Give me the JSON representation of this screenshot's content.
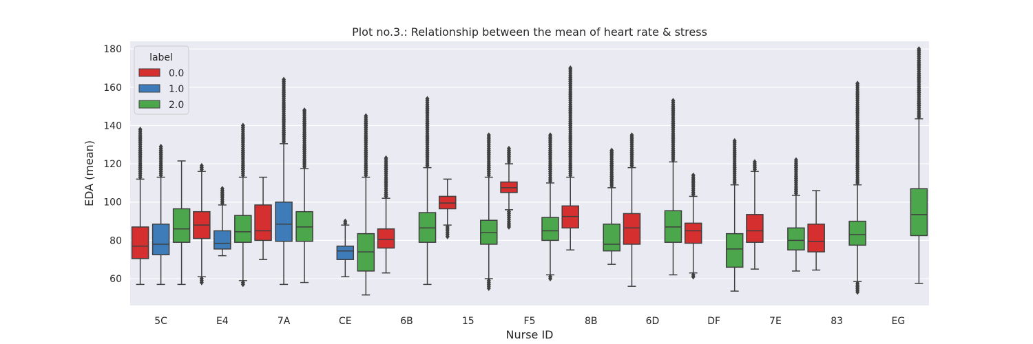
{
  "chart_data": {
    "type": "box",
    "title": "Plot no.3.: Relationship between the mean of heart rate & stress",
    "xlabel": "Nurse ID",
    "ylabel": "EDA (mean)",
    "ylim": [
      46,
      184
    ],
    "yticks": [
      60,
      80,
      100,
      120,
      140,
      160,
      180
    ],
    "grid": true,
    "legend": {
      "title": "label",
      "placement": "top-left"
    },
    "categories": [
      "5C",
      "E4",
      "7A",
      "CE",
      "6B",
      "15",
      "F5",
      "8B",
      "6D",
      "DF",
      "7E",
      "83",
      "EG"
    ],
    "series": [
      {
        "name": "0.0",
        "color": "#d62f2f",
        "boxes": [
          {
            "category": "5C",
            "min": 57,
            "q1": 70.5,
            "median": 77,
            "q3": 87,
            "max": 112,
            "outliers_to": 138
          },
          {
            "category": "E4",
            "min": 61,
            "q1": 81,
            "median": 88,
            "q3": 95,
            "max": 116,
            "outliers_low_to": 58,
            "outliers_to": 119
          },
          {
            "category": "7A",
            "min": 70,
            "q1": 80,
            "median": 85,
            "q3": 98.5,
            "max": 113
          },
          null,
          {
            "category": "6B",
            "min": 63,
            "q1": 76,
            "median": 80.5,
            "q3": 86,
            "max": 102,
            "outliers_to": 123
          },
          {
            "category": "15",
            "min": 88,
            "q1": 96.5,
            "median": 99.5,
            "q3": 103,
            "max": 112,
            "outliers_low_to": 82
          },
          {
            "category": "F5",
            "min": 96,
            "q1": 105,
            "median": 107.5,
            "q3": 110.5,
            "max": 120,
            "outliers_low_to": 87,
            "outliers_to": 128
          },
          {
            "category": "8B",
            "min": 75,
            "q1": 86.5,
            "median": 92.5,
            "q3": 98,
            "max": 113,
            "outliers_to": 170
          },
          {
            "category": "6D",
            "min": 56,
            "q1": 78,
            "median": 86.5,
            "q3": 94,
            "max": 118,
            "outliers_to": 135
          },
          {
            "category": "DF",
            "min": 63,
            "q1": 78.5,
            "median": 85,
            "q3": 89,
            "max": 103,
            "outliers_low_to": 61,
            "outliers_to": 114
          },
          {
            "category": "7E",
            "min": 65,
            "q1": 79,
            "median": 85,
            "q3": 93.5,
            "max": 116,
            "outliers_to": 121
          },
          {
            "category": "83",
            "min": 64.5,
            "q1": 74,
            "median": 79.5,
            "q3": 88.5,
            "max": 106
          },
          null
        ]
      },
      {
        "name": "1.0",
        "color": "#3d7cb8",
        "boxes": [
          {
            "category": "5C",
            "min": 57,
            "q1": 72.5,
            "median": 78,
            "q3": 88.5,
            "max": 113,
            "outliers_to": 129
          },
          {
            "category": "E4",
            "min": 72,
            "q1": 75.5,
            "median": 78.5,
            "q3": 85,
            "max": 98.5,
            "outliers_to": 107
          },
          {
            "category": "7A",
            "min": 57,
            "q1": 79.5,
            "median": 88.5,
            "q3": 100,
            "max": 130.5,
            "outliers_to": 164
          },
          {
            "category": "CE",
            "min": 61,
            "q1": 70,
            "median": 74.5,
            "q3": 77,
            "max": 88,
            "outliers_to": 90
          },
          null,
          null,
          null,
          null,
          null,
          null,
          null,
          null,
          null
        ]
      },
      {
        "name": "2.0",
        "color": "#4ca64c",
        "boxes": [
          {
            "category": "5C",
            "min": 57,
            "q1": 79,
            "median": 86,
            "q3": 96.5,
            "max": 121.5
          },
          {
            "category": "E4",
            "min": 59,
            "q1": 79,
            "median": 84.5,
            "q3": 93,
            "max": 113,
            "outliers_low_to": 57,
            "outliers_to": 140
          },
          {
            "category": "7A",
            "min": 58,
            "q1": 79.5,
            "median": 87,
            "q3": 95,
            "max": 117.5,
            "outliers_to": 148
          },
          {
            "category": "CE",
            "min": 51.5,
            "q1": 64,
            "median": 74,
            "q3": 83.5,
            "max": 113,
            "outliers_to": 145
          },
          {
            "category": "6B",
            "min": 57,
            "q1": 79,
            "median": 86.5,
            "q3": 94.5,
            "max": 118,
            "outliers_to": 154
          },
          {
            "category": "15",
            "min": 60,
            "q1": 78,
            "median": 84,
            "q3": 90.5,
            "max": 113,
            "outliers_low_to": 55,
            "outliers_to": 135
          },
          {
            "category": "F5",
            "min": 62,
            "q1": 80,
            "median": 85,
            "q3": 92,
            "max": 110,
            "outliers_low_to": 60,
            "outliers_to": 135
          },
          {
            "category": "8B",
            "min": 67.5,
            "q1": 74.5,
            "median": 78,
            "q3": 88.5,
            "max": 107.5,
            "outliers_to": 127
          },
          {
            "category": "6D",
            "min": 62,
            "q1": 79,
            "median": 87,
            "q3": 95.5,
            "max": 121,
            "outliers_to": 153
          },
          {
            "category": "DF",
            "min": 53.5,
            "q1": 66,
            "median": 75.5,
            "q3": 83.5,
            "max": 109,
            "outliers_to": 132
          },
          {
            "category": "7E",
            "min": 64,
            "q1": 75,
            "median": 80,
            "q3": 86.5,
            "max": 103.5,
            "outliers_to": 122
          },
          {
            "category": "83",
            "min": 58.5,
            "q1": 77.5,
            "median": 83,
            "q3": 90,
            "max": 109,
            "outliers_low_to": 53,
            "outliers_to": 162
          },
          {
            "category": "EG",
            "min": 57.5,
            "q1": 82.5,
            "median": 93.5,
            "q3": 107,
            "max": 143.5,
            "outliers_to": 180
          }
        ]
      }
    ]
  }
}
